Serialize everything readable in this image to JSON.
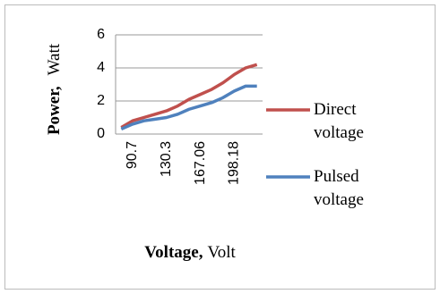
{
  "chart_data": {
    "type": "line",
    "y_label": "Power,",
    "y_label_unit": "Watt",
    "x_label": "Voltage,",
    "x_label_unit": "Volt",
    "categories": [
      null,
      "90.7",
      null,
      null,
      "130.3",
      null,
      null,
      "167.06",
      null,
      null,
      "198.18",
      null,
      null
    ],
    "series": [
      {
        "name": "Direct voltage",
        "color": "#c0504d",
        "values": [
          0.4,
          0.8,
          1.0,
          1.2,
          1.4,
          1.7,
          2.1,
          2.4,
          2.7,
          3.1,
          3.6,
          4.0,
          4.2
        ]
      },
      {
        "name": "Pulsed voltage",
        "color": "#4f81bd",
        "values": [
          0.3,
          0.6,
          0.8,
          0.9,
          1.0,
          1.2,
          1.5,
          1.7,
          1.9,
          2.2,
          2.6,
          2.9,
          2.9
        ]
      }
    ],
    "ylim": [
      0,
      6
    ],
    "yticks": [
      0,
      2,
      4,
      6
    ],
    "grid": true
  }
}
